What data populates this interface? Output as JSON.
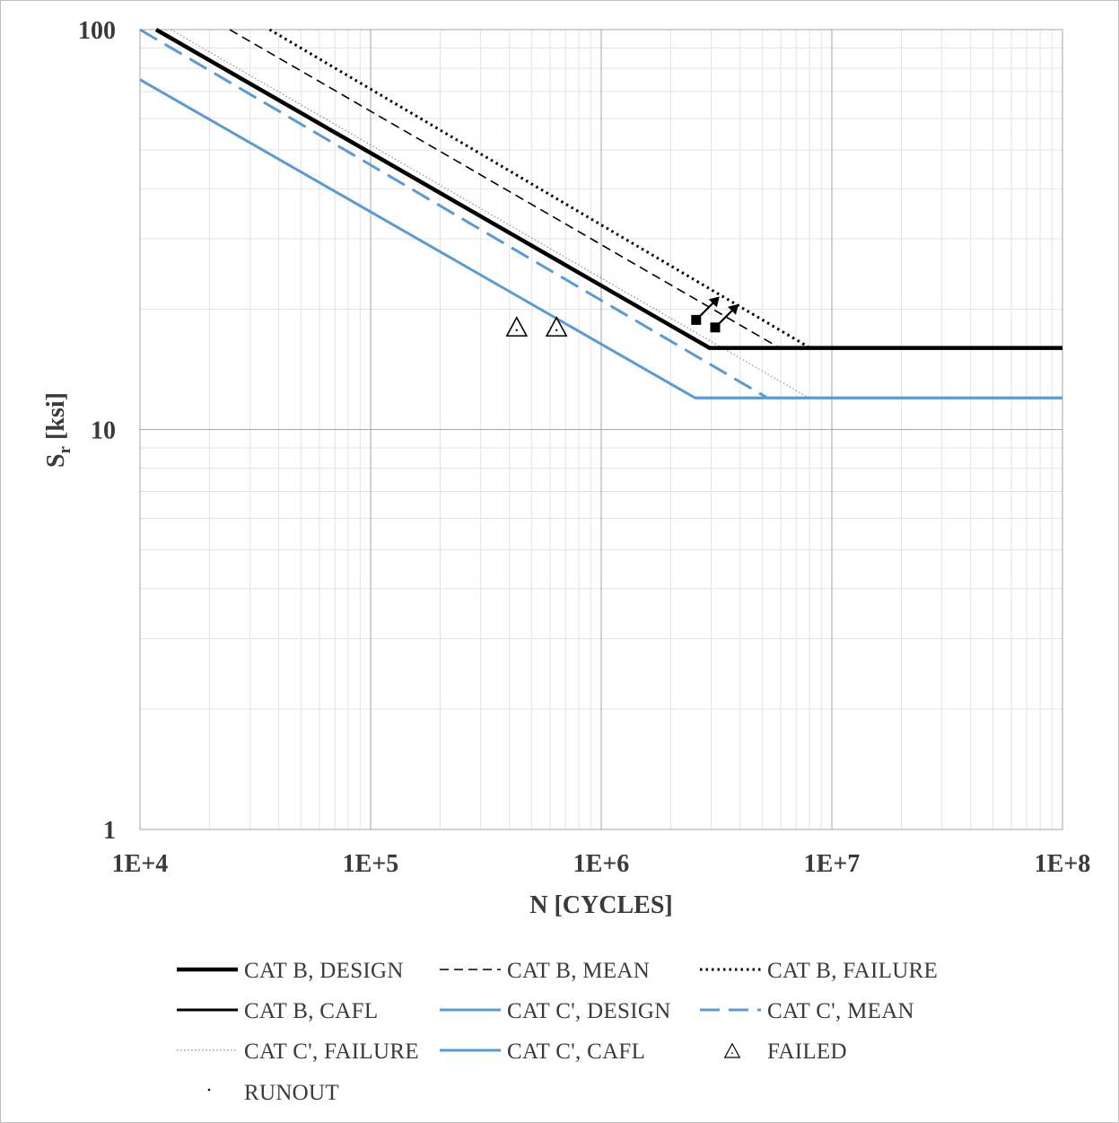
{
  "chart_data": {
    "type": "line",
    "x_scale": "log",
    "y_scale": "log",
    "xlim": [
      10000,
      100000000
    ],
    "ylim": [
      1,
      100
    ],
    "grid": true,
    "xlabel": "N [CYCLES]",
    "ylabel_main": "S",
    "ylabel_sub": "r",
    "ylabel_rest": " [ksi]",
    "x_ticks": [
      {
        "value": 10000,
        "label": "1E+4"
      },
      {
        "value": 100000,
        "label": "1E+5"
      },
      {
        "value": 1000000,
        "label": "1E+6"
      },
      {
        "value": 10000000,
        "label": "1E+7"
      },
      {
        "value": 100000000,
        "label": "1E+8"
      }
    ],
    "y_ticks": [
      {
        "value": 1,
        "label": "1"
      },
      {
        "value": 10,
        "label": "10"
      },
      {
        "value": 100,
        "label": "100"
      }
    ],
    "legend_position": "bottom",
    "series": [
      {
        "name": "CAT B, DESIGN",
        "color": "#000000",
        "style": "solid-thick",
        "points": [
          [
            11750,
            100
          ],
          [
            2950000,
            16
          ],
          [
            100000000,
            16
          ]
        ]
      },
      {
        "name": "CAT B, MEAN",
        "color": "#000000",
        "style": "dashed",
        "points": [
          [
            24500,
            100
          ],
          [
            5940000,
            16
          ]
        ]
      },
      {
        "name": "CAT B, FAILURE",
        "color": "#000000",
        "style": "dotted",
        "points": [
          [
            36500,
            100
          ],
          [
            8050000,
            16
          ]
        ]
      },
      {
        "name": "CAT B, CAFL",
        "color": "#000000",
        "style": "solid",
        "points": [
          [
            2950000,
            16
          ],
          [
            100000000,
            16
          ]
        ]
      },
      {
        "name": "CAT C', DESIGN",
        "color": "#5b9bd5",
        "style": "solid",
        "points": [
          [
            10000,
            75
          ],
          [
            2550000,
            12
          ],
          [
            100000000,
            12
          ]
        ]
      },
      {
        "name": "CAT C', MEAN",
        "color": "#5b9bd5",
        "style": "dashed-long",
        "points": [
          [
            10000,
            100
          ],
          [
            5250000,
            12
          ]
        ]
      },
      {
        "name": "CAT C', FAILURE",
        "color": "#5b9bd5",
        "style": "dotted-thin",
        "points": [
          [
            13600,
            100
          ],
          [
            7950000,
            12
          ]
        ]
      },
      {
        "name": "CAT C', CAFL",
        "color": "#5b9bd5",
        "style": "solid",
        "points": [
          [
            2550000,
            12
          ],
          [
            100000000,
            12
          ]
        ]
      }
    ],
    "failed": {
      "name": "FAILED",
      "points": [
        [
          430000,
          18
        ],
        [
          640000,
          18
        ]
      ]
    },
    "runout": {
      "name": "RUNOUT",
      "points": [
        [
          2580000,
          18.8
        ],
        [
          3120000,
          18.0
        ]
      ]
    }
  }
}
